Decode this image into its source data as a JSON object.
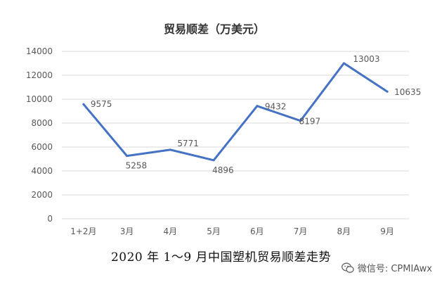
{
  "chart_data": {
    "type": "line",
    "title": "贸易顺差（万美元）",
    "categories": [
      "1+2月",
      "3月",
      "4月",
      "5月",
      "6月",
      "7月",
      "8月",
      "9月"
    ],
    "series": [
      {
        "values": [
          9575,
          5258,
          5771,
          4896,
          9432,
          8197,
          13003,
          10635
        ],
        "color": "#4472C4"
      }
    ],
    "data_labels": [
      "9575",
      "5258",
      "5771",
      "4896",
      "9432",
      "8197",
      "13003",
      "10635"
    ],
    "y_ticks": [
      0,
      2000,
      4000,
      6000,
      8000,
      10000,
      12000,
      14000
    ],
    "ylim": [
      0,
      14000
    ],
    "grid": true,
    "legend": "none"
  },
  "caption": "2020 年 1～9 月中国塑机贸易顺差走势",
  "watermark": {
    "text": "微信号: CPMIAwx",
    "icon": "wechat-icon"
  }
}
